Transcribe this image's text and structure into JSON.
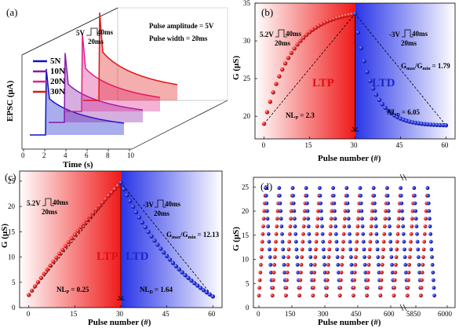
{
  "chart_data": [
    {
      "panel": "(a)",
      "type": "line",
      "xlabel": "Time (s)",
      "ylabel": "EPSC (μA)",
      "x_ticks": [
        "0",
        "2",
        "4",
        "6",
        "8",
        "10"
      ],
      "y_ticks": [],
      "annotations": {
        "pulse_amplitude": "Pulse amplitude = 5V",
        "pulse_width": "Pulse width = 20ms",
        "v": "5V",
        "t1": "40ms",
        "t2": "20ms"
      },
      "series": [
        {
          "name": "5N",
          "color": "#0a14c8",
          "spike_time": 1.9,
          "peak_rel": 0.55
        },
        {
          "name": "10N",
          "color": "#8a1aa8",
          "spike_time": 1.9,
          "peak_rel": 0.62
        },
        {
          "name": "20N",
          "color": "#e0208a",
          "spike_time": 1.9,
          "peak_rel": 0.8
        },
        {
          "name": "30N",
          "color": "#e01818",
          "spike_time": 1.9,
          "peak_rel": 1.0
        }
      ]
    },
    {
      "panel": "(b)",
      "type": "scatter",
      "xlabel": "Pulse number (#)",
      "ylabel": "G (μS)",
      "xlim": [
        -3,
        63
      ],
      "ylim": [
        17,
        35
      ],
      "x_ticks": [
        "0",
        "15",
        "30",
        "45",
        "60"
      ],
      "y_ticks": [
        "20",
        "25",
        "30",
        "35"
      ],
      "ltp_label": "LTP",
      "ltd_label": "LTD",
      "pulse_ltp": {
        "v": "5.2V",
        "t1": "40ms",
        "t2": "20ms"
      },
      "pulse_ltd": {
        "v": "-3V",
        "t1": "40ms",
        "t2": "20ms"
      },
      "nl_p": "NL",
      "nl_p_sub": "P",
      "nl_p_val": "= 2.3",
      "nl_d": "NL",
      "nl_d_sub": "D",
      "nl_d_val": "= 6.05",
      "ratio": "G",
      "ratio_sub1": "max",
      "ratio_mid": "/G",
      "ratio_sub2": "min",
      "ratio_val": "= 1.79",
      "ltp_points": {
        "start": 19.0,
        "end": 33.6,
        "nl": 3.2,
        "n": 31,
        "x0": 0,
        "x1": 30
      },
      "ltd_points": {
        "start": 33.6,
        "end": 18.8,
        "nl": 5.5,
        "n": 31,
        "x0": 30,
        "x1": 60
      }
    },
    {
      "panel": "(c)",
      "type": "scatter",
      "xlabel": "Pulse number (#)",
      "ylabel": "G (μS)",
      "xlim": [
        -3,
        63
      ],
      "ylim": [
        0,
        27
      ],
      "x_ticks": [
        "0",
        "15",
        "30",
        "45",
        "60"
      ],
      "y_ticks": [
        "0",
        "5",
        "10",
        "15",
        "20",
        "25"
      ],
      "ltp_label": "LTP",
      "ltd_label": "LTD",
      "pulse_ltp": {
        "v": "5.2V",
        "t1": "40ms",
        "t2": "20ms"
      },
      "pulse_ltd": {
        "v": "-3V",
        "t1": "40ms",
        "t2": "20ms"
      },
      "nl_p": "NL",
      "nl_p_sub": "P",
      "nl_p_val": "= 0.25",
      "nl_d": "NL",
      "nl_d_sub": "D",
      "nl_d_val": "= 1.64",
      "ratio": "G",
      "ratio_sub1": "max",
      "ratio_mid": "/G",
      "ratio_sub2": "min",
      "ratio_val": "= 12.13",
      "ltp_points": {
        "start": 2.5,
        "end": 24.7,
        "nl": 0.3,
        "n": 31,
        "x0": 0,
        "x1": 30
      },
      "ltd_points": {
        "start": 24.7,
        "end": 2.2,
        "nl": 1.2,
        "n": 31,
        "x0": 30,
        "x1": 60
      }
    },
    {
      "panel": "(d)",
      "type": "scatter",
      "xlabel": "Pulse number (#)",
      "ylabel": "G (μS)",
      "ylim": [
        0,
        27
      ],
      "y_ticks": [
        "0",
        "5",
        "10",
        "15",
        "20",
        "25"
      ],
      "x_ticks_left": [
        "0",
        "150",
        "300",
        "450",
        "600"
      ],
      "x_ticks_right": [
        "5850",
        "6000"
      ],
      "cycles": 13,
      "g_min": 2.5,
      "g_max": 24.8,
      "ltp_color": "#e01818",
      "ltd_color": "#1a28d0"
    }
  ]
}
